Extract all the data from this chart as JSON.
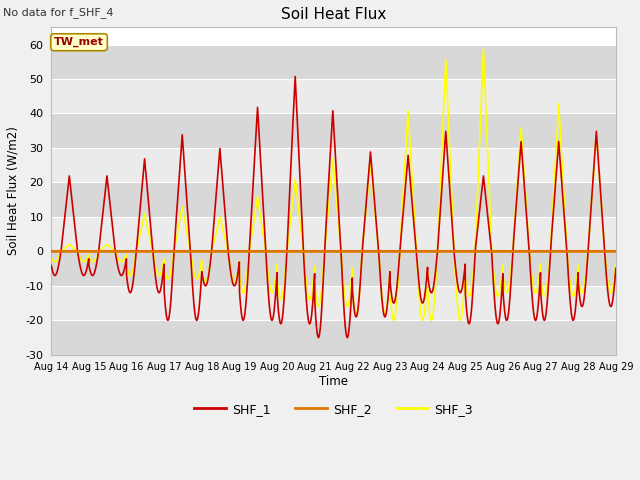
{
  "title": "Soil Heat Flux",
  "ylabel": "Soil Heat Flux (W/m2)",
  "xlabel": "Time",
  "annotation": "No data for f_SHF_4",
  "legend_box_label": "TW_met",
  "ylim": [
    -30,
    65
  ],
  "yticks": [
    -30,
    -20,
    -10,
    0,
    10,
    20,
    30,
    40,
    50,
    60
  ],
  "xtick_labels": [
    "Aug 14",
    "Aug 15",
    "Aug 16",
    "Aug 17",
    "Aug 18",
    "Aug 19",
    "Aug 20",
    "Aug 21",
    "Aug 22",
    "Aug 23",
    "Aug 24",
    "Aug 25",
    "Aug 26",
    "Aug 27",
    "Aug 28",
    "Aug 29"
  ],
  "series_colors": {
    "SHF_1": "#cc0000",
    "SHF_2": "#dd7700",
    "SHF_3": "#ffff00"
  },
  "band_light": "#ebebeb",
  "band_dark": "#d8d8d8",
  "fig_bg": "#f0f0f0",
  "shf1_peaks": [
    22,
    27,
    34,
    30,
    42,
    51,
    41,
    29,
    28,
    35,
    22,
    32,
    32,
    35
  ],
  "shf1_troughs": [
    -7,
    -12,
    -20,
    -10,
    -20,
    -21,
    -25,
    -19,
    -15,
    -12,
    -21,
    -20,
    -20,
    -16
  ],
  "shf3_peaks": [
    2,
    11,
    13,
    10,
    16,
    21,
    27,
    26,
    41,
    56,
    59,
    36,
    43,
    35
  ],
  "shf3_troughs": [
    -3,
    -7,
    -8,
    -9,
    -12,
    -14,
    -16,
    -18,
    -20,
    -20,
    -13,
    -12,
    -13,
    -12
  ]
}
